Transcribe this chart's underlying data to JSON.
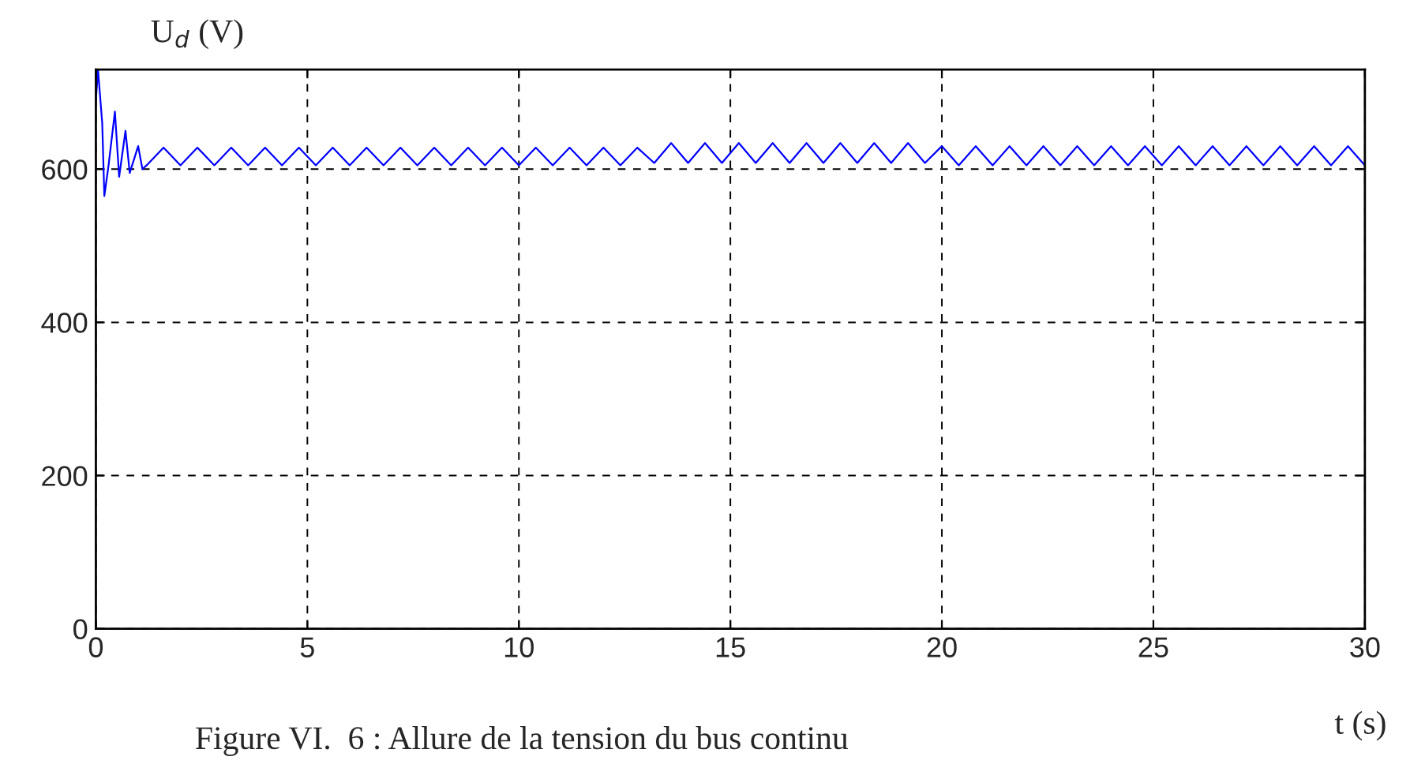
{
  "chart_data": {
    "type": "line",
    "ylabel": "U$_{d}$ (V)",
    "xlabel": "t (s)",
    "annotations": [
      "Figure VI.  6 : Allure de la tension du bus continu"
    ],
    "xlim": [
      0,
      30
    ],
    "ylim": [
      0,
      730
    ],
    "xticks": [
      0,
      5,
      10,
      15,
      20,
      25,
      30
    ],
    "yticks": [
      0,
      200,
      400,
      600
    ],
    "grid": true,
    "line_style": "solid",
    "marker": "none",
    "series": [
      {
        "color": "#0000ff",
        "x": [
          0,
          0.05,
          0.15,
          0.2,
          0.3,
          0.45,
          0.55,
          0.7,
          0.8,
          1.0,
          1.1,
          1.2,
          1.6,
          2.0,
          2.4,
          2.8,
          3.2,
          3.6,
          4.0,
          4.4,
          4.8,
          5.2,
          5.6,
          6.0,
          6.4,
          6.8,
          7.2,
          7.6,
          8.0,
          8.4,
          8.8,
          9.2,
          9.6,
          10.0,
          10.4,
          10.8,
          11.2,
          11.6,
          12.0,
          12.4,
          12.8,
          13.2,
          13.6,
          14.0,
          14.4,
          14.8,
          15.2,
          15.6,
          16.0,
          16.4,
          16.8,
          17.2,
          17.6,
          18.0,
          18.4,
          18.8,
          19.2,
          19.6,
          20.0,
          20.4,
          20.8,
          21.2,
          21.6,
          22.0,
          22.4,
          22.8,
          23.2,
          23.6,
          24.0,
          24.4,
          24.8,
          25.2,
          25.6,
          26.0,
          26.4,
          26.8,
          27.2,
          27.6,
          28.0,
          28.4,
          28.8,
          29.2,
          29.6,
          30.0
        ],
        "values": [
          690,
          730,
          660,
          565,
          605,
          675,
          590,
          650,
          595,
          630,
          600,
          605,
          628,
          605,
          628,
          605,
          628,
          605,
          628,
          605,
          628,
          605,
          628,
          605,
          628,
          605,
          628,
          605,
          628,
          605,
          628,
          605,
          628,
          605,
          628,
          605,
          628,
          605,
          628,
          605,
          628,
          608,
          634,
          608,
          634,
          608,
          634,
          608,
          634,
          608,
          634,
          608,
          634,
          608,
          634,
          608,
          634,
          608,
          630,
          605,
          630,
          605,
          630,
          605,
          630,
          605,
          630,
          605,
          630,
          605,
          630,
          605,
          630,
          605,
          630,
          605,
          630,
          605,
          630,
          605,
          630,
          605,
          630,
          605
        ]
      }
    ]
  }
}
